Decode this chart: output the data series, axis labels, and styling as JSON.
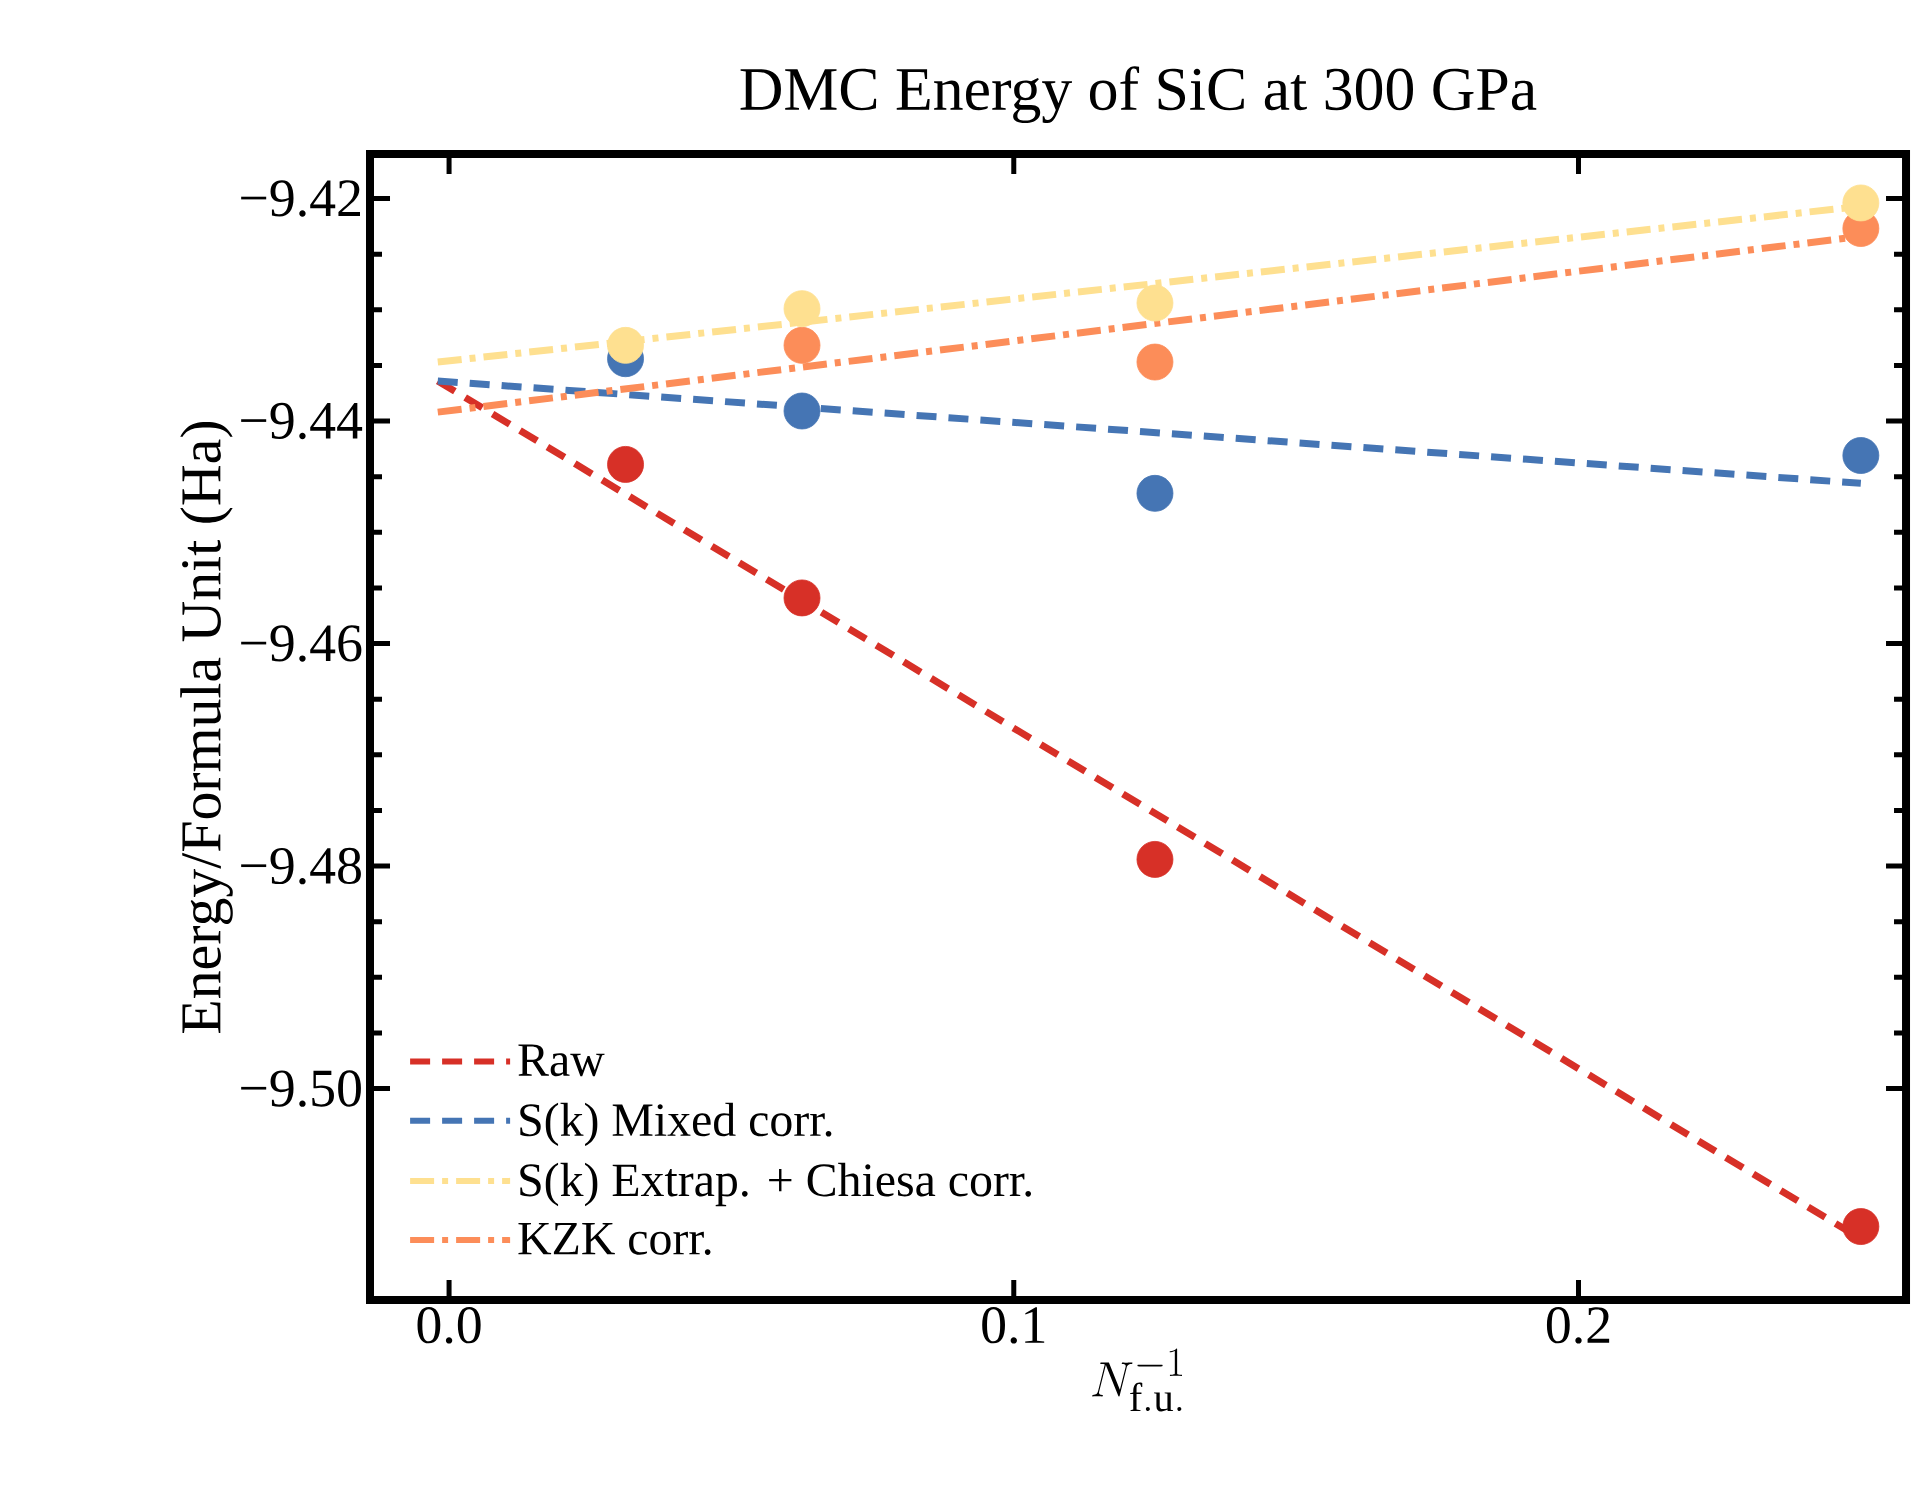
{
  "chart_data": {
    "type": "scatter",
    "title": "DMC Energy of SiC at 300 GPa",
    "xlabel": "N_{\\mathrm{f.u.}}^{-1}",
    "ylabel": "Energy/Formula Unit (Ha)",
    "xlim": [
      -0.014,
      0.258
    ],
    "ylim": [
      -9.519,
      -9.416
    ],
    "xticks": [
      {
        "value": 0.0,
        "label": "0.0"
      },
      0.1,
      0.2
    ],
    "yticks": [
      {
        "value": -9.42,
        "label": "−9.42"
      },
      {
        "value": -9.44,
        "label": "−9.44"
      },
      {
        "value": -9.46,
        "label": "−9.46"
      },
      {
        "value": -9.48,
        "label": "−9.48"
      },
      {
        "value": -9.5,
        "label": "−9.50"
      }
    ],
    "legend": "bottom left",
    "marker": "circle",
    "series": [
      {
        "color": "#d73027",
        "x": [
          0.03125,
          0.0625,
          0.125,
          0.25
        ],
        "values": [
          -9.4439,
          -9.4559,
          -9.4794,
          -9.5124
        ]
      },
      {
        "color": "#4575b4",
        "x": [
          0.03125,
          0.0625,
          0.125,
          0.25
        ],
        "values": [
          -9.4344,
          -9.4391,
          -9.4465,
          -9.4431
        ]
      },
      {
        "color": "#fc8d59",
        "x": [
          0.0625,
          0.125,
          0.25
        ],
        "values": [
          -9.4332,
          -9.4347,
          -9.4227
        ]
      },
      {
        "color": "#fee090",
        "x": [
          0.03125,
          0.0625,
          0.125,
          0.25
        ],
        "values": [
          -9.4332,
          -9.4299,
          -9.4294,
          -9.4204
        ]
      },
      {
        "type": "line",
        "name": "Raw",
        "marker": "none",
        "color": "#d73027",
        "line_style": "dashed",
        "x": [
          -0.002,
          0.25
        ],
        "values": [
          -9.4364,
          -9.5135
        ]
      },
      {
        "type": "line",
        "name": "S(k) Mixed corr.",
        "marker": "none",
        "color": "#4575b4",
        "line_style": "dashed",
        "x": [
          -0.002,
          0.25
        ],
        "values": [
          -9.4364,
          -9.4456
        ]
      },
      {
        "type": "line",
        "name": "S(k) Extrap. + Chiesa corr.",
        "marker": "none",
        "color": "#fee090",
        "line_style": "dashdot",
        "x": [
          -0.002,
          0.25
        ],
        "values": [
          -9.4347,
          -9.4207
        ]
      },
      {
        "type": "line",
        "name": "KZK corr.",
        "marker": "none",
        "color": "#fc8d59",
        "line_style": "dashdot",
        "x": [
          -0.002,
          0.25
        ],
        "values": [
          -9.4392,
          -9.4234
        ]
      }
    ]
  }
}
